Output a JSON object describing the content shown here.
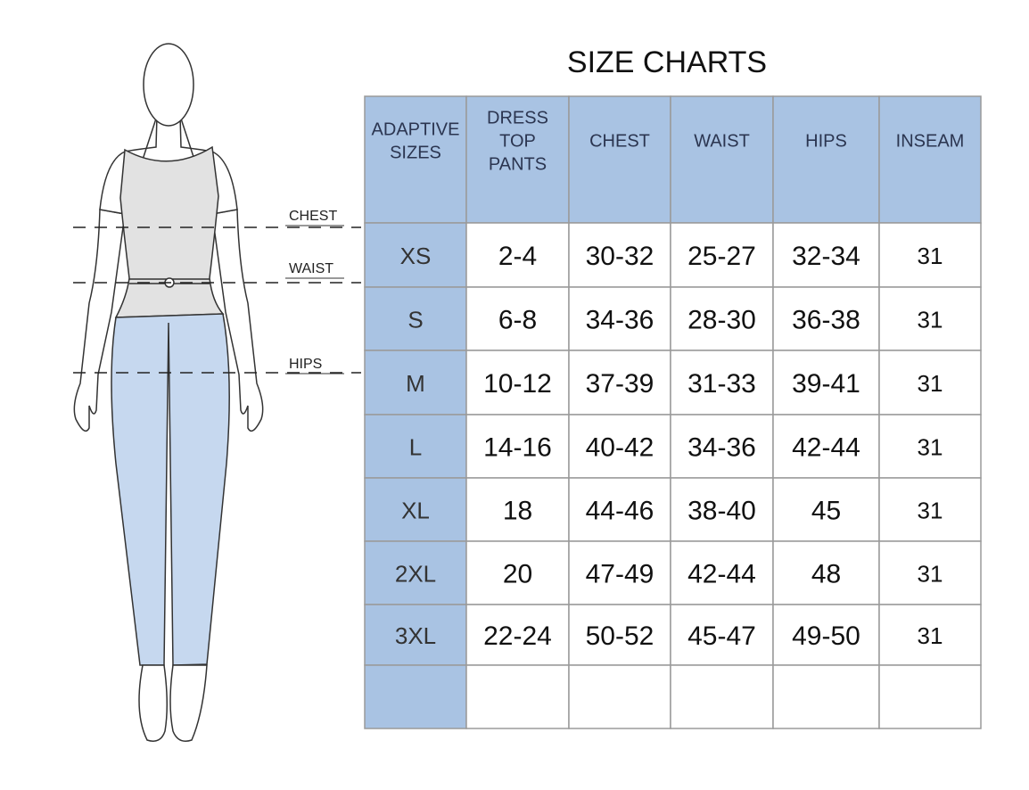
{
  "title": "SIZE CHARTS",
  "figure": {
    "labels": [
      "CHEST",
      "WAIST",
      "HIPS"
    ]
  },
  "table": {
    "header": [
      [
        "ADAPTIVE",
        "SIZES"
      ],
      [
        "DRESS",
        "TOP",
        "PANTS"
      ],
      [
        "CHEST"
      ],
      [
        "WAIST"
      ],
      [
        "HIPS"
      ],
      [
        "INSEAM"
      ]
    ],
    "rows": [
      [
        "XS",
        "2-4",
        "30-32",
        "25-27",
        "32-34",
        "31"
      ],
      [
        "S",
        "6-8",
        "34-36",
        "28-30",
        "36-38",
        "31"
      ],
      [
        "M",
        "10-12",
        "37-39",
        "31-33",
        "39-41",
        "31"
      ],
      [
        "L",
        "14-16",
        "40-42",
        "34-36",
        "42-44",
        "31"
      ],
      [
        "XL",
        "18",
        "44-46",
        "38-40",
        "45",
        "31"
      ],
      [
        "2XL",
        "20",
        "47-49",
        "42-44",
        "48",
        "31"
      ],
      [
        "3XL",
        "22-24",
        "50-52",
        "45-47",
        "49-50",
        "31"
      ]
    ]
  }
}
